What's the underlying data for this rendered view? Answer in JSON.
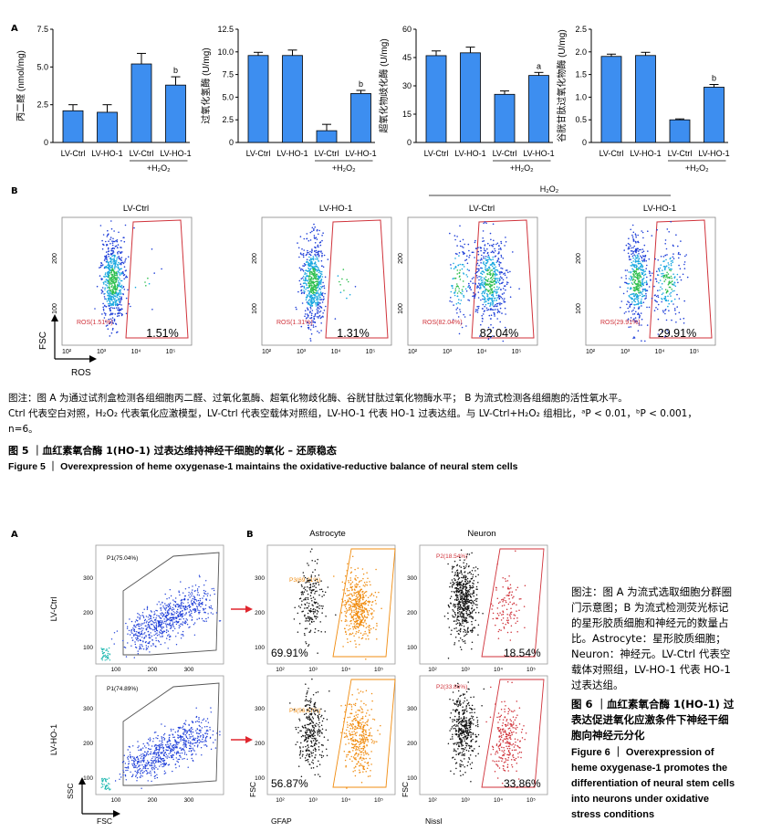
{
  "figure5": {
    "panel_a_label": "A",
    "panel_b_label": "B",
    "bar_charts": [
      {
        "ylabel": "丙二醛 (nmol/mg)",
        "ylim": [
          0,
          7.5
        ],
        "yticks": [
          "0",
          "2.5",
          "5.0",
          "7.5"
        ],
        "tickvals": [
          0,
          2.5,
          5,
          7.5
        ],
        "values": [
          2.1,
          2.0,
          5.2,
          3.8
        ],
        "errors": [
          0.4,
          0.5,
          0.7,
          0.55
        ],
        "sig": [
          "",
          "",
          "",
          "b"
        ]
      },
      {
        "ylabel": "过氧化氢酶 (U/mg)",
        "ylim": [
          0,
          12.5
        ],
        "yticks": [
          "0",
          "2.5",
          "5.0",
          "7.5",
          "10.0",
          "12.5"
        ],
        "tickvals": [
          0,
          2.5,
          5,
          7.5,
          10,
          12.5
        ],
        "values": [
          9.6,
          9.6,
          1.3,
          5.4
        ],
        "errors": [
          0.35,
          0.6,
          0.7,
          0.35
        ],
        "sig": [
          "",
          "",
          "",
          "b"
        ]
      },
      {
        "ylabel": "超氧化物歧化酶 (U/mg)",
        "ylim": [
          0,
          60
        ],
        "yticks": [
          "0",
          "15",
          "30",
          "45",
          "60"
        ],
        "tickvals": [
          0,
          15,
          30,
          45,
          60
        ],
        "values": [
          46,
          47.5,
          25.5,
          35.5
        ],
        "errors": [
          2.5,
          3.0,
          1.8,
          1.6
        ],
        "sig": [
          "",
          "",
          "",
          "a"
        ]
      },
      {
        "ylabel": "谷胱甘肽过氧化物酶 (U/mg)",
        "ylim": [
          0,
          2.5
        ],
        "yticks": [
          "0",
          "0.5",
          "1.0",
          "1.5",
          "2.0",
          "2.5"
        ],
        "tickvals": [
          0,
          0.5,
          1,
          1.5,
          2,
          2.5
        ],
        "values": [
          1.9,
          1.92,
          0.5,
          1.22
        ],
        "errors": [
          0.05,
          0.07,
          0.02,
          0.06
        ],
        "sig": [
          "",
          "",
          "",
          "b"
        ]
      }
    ],
    "categories": [
      "LV-Ctrl",
      "LV-HO-1",
      "LV-Ctrl",
      "LV-HO-1"
    ],
    "h2o2_group": "+H₂O₂",
    "h2o2_header": "H₂O₂",
    "flow_titles": [
      "LV-Ctrl",
      "LV-HO-1",
      "LV-Ctrl",
      "LV-HO-1"
    ],
    "gate_labels": [
      "ROS(1.51%)",
      "ROS(1.31%)",
      "ROS(82.04%)",
      "ROS(29.91%)"
    ],
    "percents": [
      "1.51%",
      "1.31%",
      "82.04%",
      "29.91%"
    ],
    "flow_yticks": [
      "100",
      "200"
    ],
    "flow_xticks": [
      "10²",
      "10³",
      "10⁴",
      "10⁵"
    ],
    "axis_fsc": "FSC",
    "axis_ros": "ROS",
    "note_line1": "图注：图 A 为通过试剂盒检测各组细胞丙二醛、过氧化氢酶、超氧化物歧化酶、谷胱甘肽过氧化物酶水平； B 为流式检测各组细胞的活性氧水平。",
    "note_line2": "Ctrl 代表空白对照，H₂O₂ 代表氧化应激模型，LV-Ctrl 代表空载体对照组，LV-HO-1 代表 HO-1 过表达组。与 LV-Ctrl+H₂O₂ 组相比，ᵃP < 0.01，ᵇP < 0.001，",
    "note_line3": "n=6。",
    "title_cn": "图 5 ｜血红素氧合酶 1(HO-1) 过表达维持神经干细胞的氧化 – 还原稳态",
    "title_en": "Figure 5 ｜ Overexpression of heme oxygenase-1 maintains the oxidative-reductive balance of neural stem cells"
  },
  "figure6": {
    "panel_a_label": "A",
    "panel_b_label": "B",
    "row_labels": [
      "LV-Ctrl",
      "LV-HO-1"
    ],
    "p1_labels": [
      "P1(75.04%)",
      "P1(74.89%)"
    ],
    "col_titles": [
      "Astrocyte",
      "Neuron"
    ],
    "p3_labels": [
      "P3(69.91%)",
      "P3(56.87%)"
    ],
    "p2_labels": [
      "P2(18.54%)",
      "P2(33.86%)"
    ],
    "astro_percents": [
      "69.91%",
      "56.87%"
    ],
    "neuron_percents": [
      "18.54%",
      "33.86%"
    ],
    "yticks": [
      "100",
      "200",
      "300"
    ],
    "xticks_lin": [
      "100",
      "200",
      "300"
    ],
    "xticks_log": [
      "10²",
      "10³",
      "10⁴",
      "10⁵"
    ],
    "axis_ssc": "SSC",
    "axis_fsc": "FSC",
    "axis_gfap": "GFAP",
    "axis_nissl": "Nissl",
    "side_note": "图注：图 A 为流式选取细胞分群圈门示意图；B 为流式检测荧光标记的星形胶质细胞和神经元的数量占比。Astrocyte：星形胶质细胞；Neuron：神经元。LV-Ctrl 代表空载体对照组，LV-HO-1 代表 HO-1 过表达组。",
    "title_cn": "图 6 ｜血红素氧合酶 1(HO-1) 过表达促进氧化应激条件下神经干细胞向神经元分化",
    "title_en": "Figure 6 ｜ Overexpression of heme oxygenase-1 promotes the differentiation of neural stem cells into neurons under oxidative stress conditions"
  },
  "colors": {
    "bar": "#3d8ef0",
    "gate_red": "#d0323a",
    "orange": "#f08c10",
    "blue_dots": "#1f3fd8",
    "arrow": "#e0262e"
  }
}
